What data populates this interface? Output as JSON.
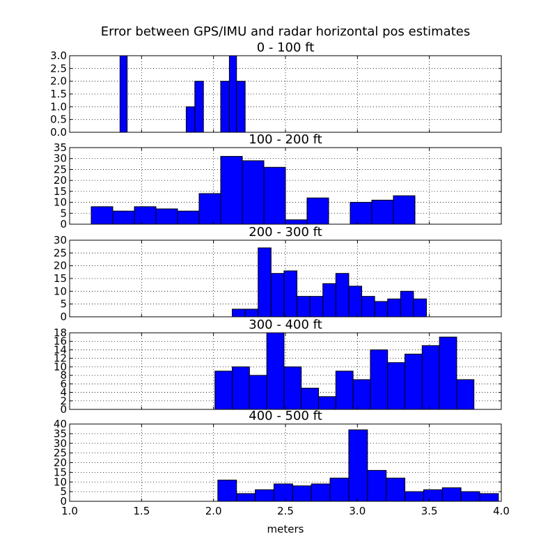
{
  "figure": {
    "title": "Error between GPS/IMU and radar horizontal pos estimates",
    "xlabel": "meters",
    "bar_color": "#0000ff",
    "edge_color": "#000000"
  },
  "chart_data": [
    {
      "type": "bar",
      "title": "0 - 100 ft",
      "xlim": [
        1.0,
        4.0
      ],
      "ylim": [
        0,
        3.0
      ],
      "yticks": [
        "0.0",
        "0.5",
        "1.0",
        "1.5",
        "2.0",
        "2.5",
        "3.0"
      ],
      "xticks": [],
      "grid": true,
      "bins": [
        {
          "x0": 1.35,
          "x1": 1.4,
          "value": 3
        },
        {
          "x0": 1.81,
          "x1": 1.87,
          "value": 1
        },
        {
          "x0": 1.87,
          "x1": 1.93,
          "value": 2
        },
        {
          "x0": 2.05,
          "x1": 2.11,
          "value": 2
        },
        {
          "x0": 2.11,
          "x1": 2.16,
          "value": 3
        },
        {
          "x0": 2.16,
          "x1": 2.22,
          "value": 2
        }
      ]
    },
    {
      "type": "bar",
      "title": "100 - 200 ft",
      "xlim": [
        1.0,
        4.0
      ],
      "ylim": [
        0,
        35
      ],
      "yticks": [
        "0",
        "5",
        "10",
        "15",
        "20",
        "25",
        "30",
        "35"
      ],
      "xticks": [],
      "grid": true,
      "bins": [
        {
          "x0": 1.15,
          "x1": 1.3,
          "value": 8
        },
        {
          "x0": 1.3,
          "x1": 1.45,
          "value": 6
        },
        {
          "x0": 1.45,
          "x1": 1.6,
          "value": 8
        },
        {
          "x0": 1.6,
          "x1": 1.75,
          "value": 7
        },
        {
          "x0": 1.75,
          "x1": 1.9,
          "value": 6
        },
        {
          "x0": 1.9,
          "x1": 2.05,
          "value": 14
        },
        {
          "x0": 2.05,
          "x1": 2.2,
          "value": 31
        },
        {
          "x0": 2.2,
          "x1": 2.35,
          "value": 29
        },
        {
          "x0": 2.35,
          "x1": 2.5,
          "value": 26
        },
        {
          "x0": 2.5,
          "x1": 2.65,
          "value": 2
        },
        {
          "x0": 2.65,
          "x1": 2.8,
          "value": 12
        },
        {
          "x0": 2.95,
          "x1": 3.1,
          "value": 10
        },
        {
          "x0": 3.1,
          "x1": 3.25,
          "value": 11
        },
        {
          "x0": 3.25,
          "x1": 3.4,
          "value": 13
        }
      ]
    },
    {
      "type": "bar",
      "title": "200 - 300 ft",
      "xlim": [
        1.0,
        4.0
      ],
      "ylim": [
        0,
        30
      ],
      "yticks": [
        "0",
        "5",
        "10",
        "15",
        "20",
        "25",
        "30"
      ],
      "xticks": [],
      "grid": true,
      "bins": [
        {
          "x0": 2.13,
          "x1": 2.22,
          "value": 3
        },
        {
          "x0": 2.22,
          "x1": 2.31,
          "value": 3
        },
        {
          "x0": 2.31,
          "x1": 2.4,
          "value": 27
        },
        {
          "x0": 2.4,
          "x1": 2.49,
          "value": 17
        },
        {
          "x0": 2.49,
          "x1": 2.58,
          "value": 18
        },
        {
          "x0": 2.58,
          "x1": 2.67,
          "value": 8
        },
        {
          "x0": 2.67,
          "x1": 2.76,
          "value": 8
        },
        {
          "x0": 2.76,
          "x1": 2.85,
          "value": 13
        },
        {
          "x0": 2.85,
          "x1": 2.94,
          "value": 17
        },
        {
          "x0": 2.94,
          "x1": 3.03,
          "value": 12
        },
        {
          "x0": 3.03,
          "x1": 3.12,
          "value": 8
        },
        {
          "x0": 3.12,
          "x1": 3.21,
          "value": 6
        },
        {
          "x0": 3.21,
          "x1": 3.3,
          "value": 7
        },
        {
          "x0": 3.3,
          "x1": 3.39,
          "value": 10
        },
        {
          "x0": 3.39,
          "x1": 3.48,
          "value": 7
        }
      ]
    },
    {
      "type": "bar",
      "title": "300 - 400 ft",
      "xlim": [
        1.0,
        4.0
      ],
      "ylim": [
        0,
        18
      ],
      "yticks": [
        "0",
        "2",
        "4",
        "6",
        "8",
        "10",
        "12",
        "14",
        "16",
        "18"
      ],
      "xticks": [],
      "grid": true,
      "bins": [
        {
          "x0": 2.01,
          "x1": 2.13,
          "value": 9
        },
        {
          "x0": 2.13,
          "x1": 2.25,
          "value": 10
        },
        {
          "x0": 2.25,
          "x1": 2.37,
          "value": 8
        },
        {
          "x0": 2.37,
          "x1": 2.49,
          "value": 18
        },
        {
          "x0": 2.49,
          "x1": 2.61,
          "value": 10
        },
        {
          "x0": 2.61,
          "x1": 2.73,
          "value": 5
        },
        {
          "x0": 2.73,
          "x1": 2.85,
          "value": 3
        },
        {
          "x0": 2.85,
          "x1": 2.97,
          "value": 9
        },
        {
          "x0": 2.97,
          "x1": 3.09,
          "value": 7
        },
        {
          "x0": 3.09,
          "x1": 3.21,
          "value": 14
        },
        {
          "x0": 3.21,
          "x1": 3.33,
          "value": 11
        },
        {
          "x0": 3.33,
          "x1": 3.45,
          "value": 13
        },
        {
          "x0": 3.45,
          "x1": 3.57,
          "value": 15
        },
        {
          "x0": 3.57,
          "x1": 3.69,
          "value": 17
        },
        {
          "x0": 3.69,
          "x1": 3.81,
          "value": 7
        }
      ]
    },
    {
      "type": "bar",
      "title": "400 - 500 ft",
      "xlim": [
        1.0,
        4.0
      ],
      "ylim": [
        0,
        40
      ],
      "yticks": [
        "0",
        "5",
        "10",
        "15",
        "20",
        "25",
        "30",
        "35",
        "40"
      ],
      "xticks": [
        "1.0",
        "1.5",
        "2.0",
        "2.5",
        "3.0",
        "3.5",
        "4.0"
      ],
      "xtick_values": [
        1.0,
        1.5,
        2.0,
        2.5,
        3.0,
        3.5,
        4.0
      ],
      "grid": true,
      "bins": [
        {
          "x0": 2.03,
          "x1": 2.16,
          "value": 11
        },
        {
          "x0": 2.16,
          "x1": 2.29,
          "value": 4
        },
        {
          "x0": 2.29,
          "x1": 2.42,
          "value": 6
        },
        {
          "x0": 2.42,
          "x1": 2.55,
          "value": 9
        },
        {
          "x0": 2.55,
          "x1": 2.68,
          "value": 8
        },
        {
          "x0": 2.68,
          "x1": 2.81,
          "value": 9
        },
        {
          "x0": 2.81,
          "x1": 2.94,
          "value": 12
        },
        {
          "x0": 2.94,
          "x1": 3.07,
          "value": 37
        },
        {
          "x0": 3.07,
          "x1": 3.2,
          "value": 16
        },
        {
          "x0": 3.2,
          "x1": 3.33,
          "value": 12
        },
        {
          "x0": 3.33,
          "x1": 3.46,
          "value": 5
        },
        {
          "x0": 3.46,
          "x1": 3.59,
          "value": 6
        },
        {
          "x0": 3.59,
          "x1": 3.72,
          "value": 7
        },
        {
          "x0": 3.72,
          "x1": 3.85,
          "value": 5
        },
        {
          "x0": 3.85,
          "x1": 3.98,
          "value": 4
        }
      ]
    }
  ]
}
